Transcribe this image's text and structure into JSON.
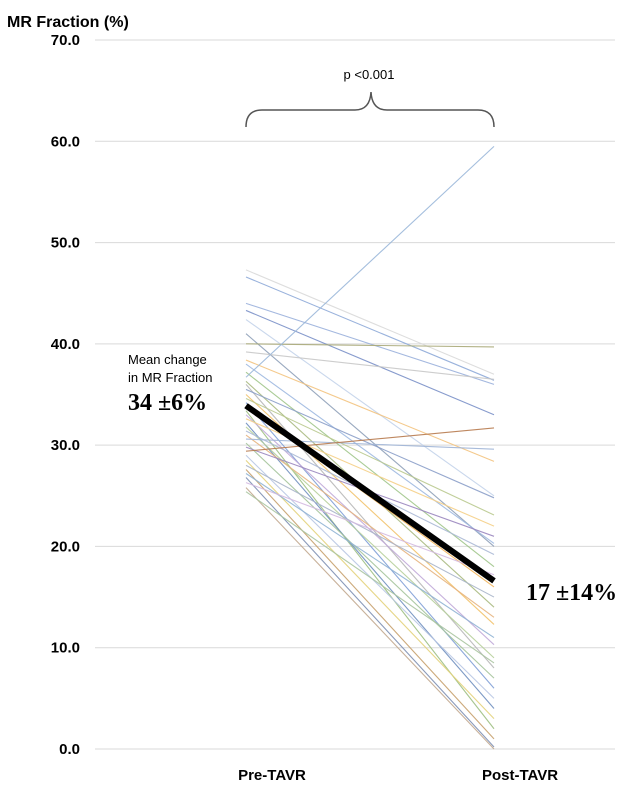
{
  "chart_data": {
    "type": "line",
    "ylabel": "MR Fraction (%)",
    "ylim": [
      0,
      70
    ],
    "yticks": [
      "0.0",
      "10.0",
      "20.0",
      "30.0",
      "40.0",
      "50.0",
      "60.0",
      "70.0"
    ],
    "categories": [
      "Pre-TAVR",
      "Post-TAVR"
    ],
    "grid": true,
    "annotation_p": "p <0.001",
    "mean_label_line1": "Mean change",
    "mean_label_line2": "in MR Fraction",
    "mean_pre_label": "34 ±6%",
    "mean_post_label": "17 ±14%",
    "mean": {
      "values": [
        33.9,
        16.6
      ],
      "color": "#000000"
    },
    "patients": [
      {
        "values": [
          47.3,
          37.0
        ],
        "color": "#d9d9d9"
      },
      {
        "values": [
          46.6,
          36.4
        ],
        "color": "#8eaad8"
      },
      {
        "values": [
          44.0,
          36.0
        ],
        "color": "#9ab0dc"
      },
      {
        "values": [
          43.3,
          33.0
        ],
        "color": "#7a90c8"
      },
      {
        "values": [
          42.4,
          25.0
        ],
        "color": "#c3d3ea"
      },
      {
        "values": [
          41.0,
          20.0
        ],
        "color": "#8ea0b8"
      },
      {
        "values": [
          40.0,
          39.7
        ],
        "color": "#a9a878"
      },
      {
        "values": [
          39.2,
          36.5
        ],
        "color": "#c8c8c8"
      },
      {
        "values": [
          38.4,
          28.4
        ],
        "color": "#f3c37f"
      },
      {
        "values": [
          38.0,
          20.3
        ],
        "color": "#9db8e0"
      },
      {
        "values": [
          37.2,
          18.0
        ],
        "color": "#a0c58a"
      },
      {
        "values": [
          36.7,
          59.5
        ],
        "color": "#9ab7d9"
      },
      {
        "values": [
          36.3,
          14.0
        ],
        "color": "#a8b97f"
      },
      {
        "values": [
          36.0,
          8.0
        ],
        "color": "#b7b7b7"
      },
      {
        "values": [
          35.5,
          24.8
        ],
        "color": "#8b9fc9"
      },
      {
        "values": [
          35.0,
          12.3
        ],
        "color": "#f2c26a"
      },
      {
        "values": [
          34.6,
          23.1
        ],
        "color": "#b9c98e"
      },
      {
        "values": [
          34.2,
          6.0
        ],
        "color": "#7f9ed6"
      },
      {
        "values": [
          33.8,
          16.0
        ],
        "color": "#f2b45a"
      },
      {
        "values": [
          33.4,
          2.0
        ],
        "color": "#9dbf82"
      },
      {
        "values": [
          33.0,
          10.3
        ],
        "color": "#c0a9d8"
      },
      {
        "values": [
          32.6,
          22.0
        ],
        "color": "#f5cf86"
      },
      {
        "values": [
          32.2,
          4.0
        ],
        "color": "#6f8fbf"
      },
      {
        "values": [
          31.8,
          9.0
        ],
        "color": "#b6cf9a"
      },
      {
        "values": [
          31.4,
          19.2
        ],
        "color": "#aab8d5"
      },
      {
        "values": [
          31.0,
          13.0
        ],
        "color": "#e6b27d"
      },
      {
        "values": [
          30.6,
          29.6
        ],
        "color": "#9fb4d6"
      },
      {
        "values": [
          30.2,
          7.0
        ],
        "color": "#a4c39a"
      },
      {
        "values": [
          29.8,
          21.0
        ],
        "color": "#9a86bf"
      },
      {
        "values": [
          29.4,
          31.7
        ],
        "color": "#b77a4e"
      },
      {
        "values": [
          29.0,
          5.0
        ],
        "color": "#b8c6e3"
      },
      {
        "values": [
          28.5,
          3.0
        ],
        "color": "#e3d17a"
      },
      {
        "values": [
          28.0,
          15.0
        ],
        "color": "#a7b4c9"
      },
      {
        "values": [
          27.6,
          1.0
        ],
        "color": "#c6a06c"
      },
      {
        "values": [
          27.2,
          11.0
        ],
        "color": "#8fb2d4"
      },
      {
        "values": [
          26.8,
          0.2
        ],
        "color": "#7d8fb3"
      },
      {
        "values": [
          26.3,
          17.2
        ],
        "color": "#d3b8e0"
      },
      {
        "values": [
          25.8,
          0.0
        ],
        "color": "#c2a98f"
      },
      {
        "values": [
          25.4,
          8.5
        ],
        "color": "#a8c49e"
      }
    ]
  }
}
